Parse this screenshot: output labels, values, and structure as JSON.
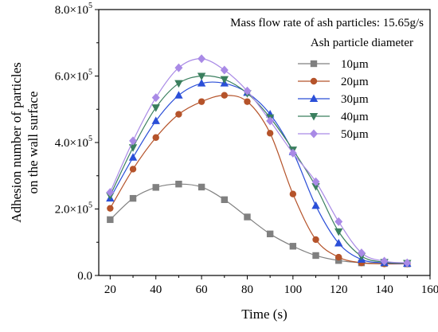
{
  "chart_data": {
    "type": "line",
    "xlabel": "Time (s)",
    "ylabel_lines": [
      "Adhesion number of particles",
      "on the wall surface"
    ],
    "xlim": [
      15,
      160
    ],
    "ylim": [
      0,
      800000
    ],
    "xticks": [
      20,
      40,
      60,
      80,
      100,
      120,
      140,
      160
    ],
    "xtick_labels": [
      "20",
      "40",
      "60",
      "80",
      "100",
      "120",
      "140",
      "160"
    ],
    "yticks": [
      0,
      200000,
      400000,
      600000,
      800000
    ],
    "ytick_labels": [
      {
        "mantissa": "0.0",
        "exp": ""
      },
      {
        "mantissa": "2.0×10",
        "exp": "5"
      },
      {
        "mantissa": "4.0×10",
        "exp": "5"
      },
      {
        "mantissa": "6.0×10",
        "exp": "5"
      },
      {
        "mantissa": "8.0×10",
        "exp": "5"
      }
    ],
    "annotation": "Mass flow rate of ash particles: 15.65g/s",
    "legend_title": "Ash particle diameter",
    "legend_position": "top-right",
    "grid": false,
    "x": [
      20,
      30,
      40,
      50,
      60,
      70,
      80,
      90,
      100,
      110,
      120,
      130,
      140,
      150
    ],
    "series": [
      {
        "name": "10μm",
        "color": "#808080",
        "marker": "square",
        "values": [
          168000,
          232000,
          265000,
          275000,
          266000,
          228000,
          176000,
          125000,
          88000,
          60000,
          45000,
          38000,
          36000,
          35000
        ]
      },
      {
        "name": "20μm",
        "color": "#b5532a",
        "marker": "circle",
        "values": [
          202000,
          320000,
          415000,
          485000,
          523000,
          542000,
          523000,
          428000,
          245000,
          108000,
          55000,
          38000,
          35000,
          35000
        ]
      },
      {
        "name": "30μm",
        "color": "#2b4fd8",
        "marker": "triangle-up",
        "values": [
          232000,
          355000,
          465000,
          542000,
          578000,
          578000,
          550000,
          485000,
          372000,
          210000,
          97000,
          48000,
          38000,
          36000
        ]
      },
      {
        "name": "40μm",
        "color": "#3a7f5e",
        "marker": "triangle-down",
        "values": [
          240000,
          385000,
          505000,
          578000,
          600000,
          590000,
          548000,
          475000,
          378000,
          268000,
          132000,
          58000,
          40000,
          37000
        ]
      },
      {
        "name": "50μm",
        "color": "#a98ae6",
        "marker": "diamond",
        "values": [
          250000,
          405000,
          535000,
          625000,
          652000,
          618000,
          555000,
          465000,
          368000,
          282000,
          162000,
          68000,
          43000,
          38000
        ]
      }
    ]
  }
}
